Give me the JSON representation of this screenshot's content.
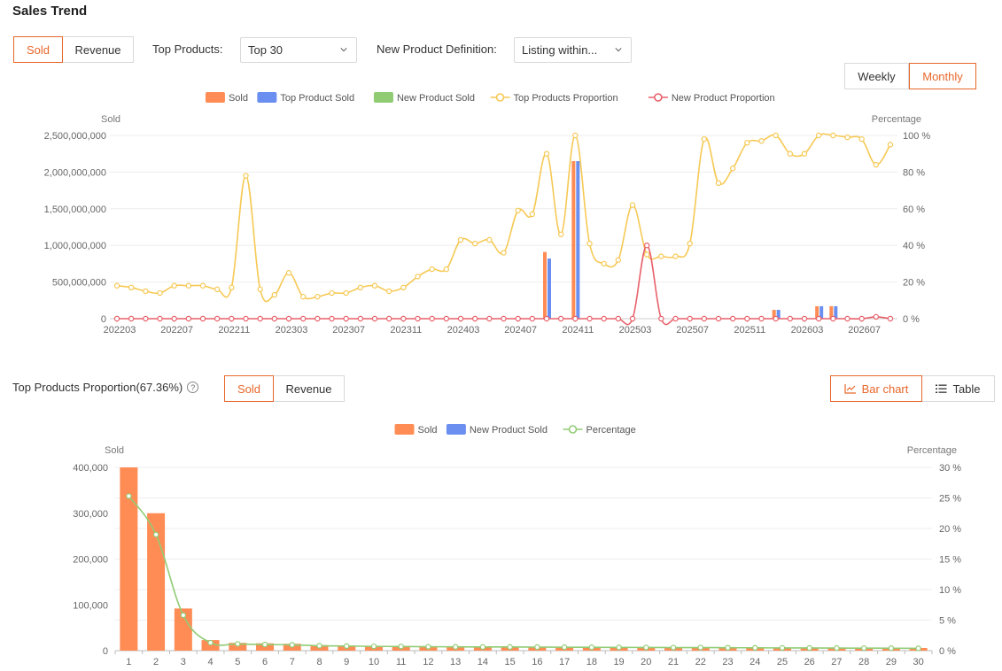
{
  "page_title": "Sales Trend",
  "top_toggle": {
    "sold": "Sold",
    "revenue": "Revenue",
    "active": "sold"
  },
  "top_products_label": "Top Products:",
  "top_products_value": "Top 30",
  "new_product_label": "New Product Definition:",
  "new_product_value": "Listing within...",
  "period_toggle": {
    "weekly": "Weekly",
    "monthly": "Monthly",
    "active": "monthly"
  },
  "colors": {
    "accent": "#e8672a",
    "sold": "#ff8c55",
    "top_sold": "#6b8ff0",
    "new_sold": "#91cc75",
    "top_prop": "#f6c955",
    "new_prop": "#e8606a",
    "pct_line": "#91cc75"
  },
  "proportion_section": {
    "title": "Top Products Proportion(67.36%)",
    "help_icon": "?",
    "toggle": {
      "sold": "Sold",
      "revenue": "Revenue",
      "active": "sold"
    },
    "view": {
      "bar": "Bar chart",
      "table": "Table",
      "active": "bar"
    }
  },
  "chart_data": [
    {
      "type": "bar",
      "legend": [
        "Sold",
        "Top Product Sold",
        "New Product Sold",
        "Top Products Proportion",
        "New Product Proportion"
      ],
      "ylabel": "Sold",
      "y2label": "Percentage",
      "ylim": [
        0,
        2500000000
      ],
      "y_ticks": [
        "0",
        "500,000,000",
        "1,000,000,000",
        "1,500,000,000",
        "2,000,000,000",
        "2,500,000,000"
      ],
      "y2lim": [
        0,
        100
      ],
      "y2_ticks": [
        "0 %",
        "20 %",
        "40 %",
        "60 %",
        "80 %",
        "100 %"
      ],
      "x_tick_labels": [
        "202203",
        "202207",
        "202211",
        "202303",
        "202307",
        "202311",
        "202403",
        "202407",
        "202411",
        "202503",
        "202507",
        "202511",
        "202603",
        "202607"
      ],
      "x_tick_every": 4,
      "n_points": 55,
      "series": [
        {
          "name": "Sold",
          "bars": [
            [
              30,
              910000000
            ],
            [
              32,
              2150000000
            ],
            [
              46,
              120000000
            ],
            [
              49,
              170000000
            ],
            [
              50,
              170000000
            ]
          ]
        },
        {
          "name": "Top Product Sold",
          "bars": [
            [
              30,
              820000000
            ],
            [
              32,
              2150000000
            ],
            [
              46,
              120000000
            ],
            [
              49,
              170000000
            ],
            [
              50,
              170000000
            ]
          ]
        },
        {
          "name": "New Product Sold",
          "bars": []
        },
        {
          "name": "Top Products Proportion",
          "values": [
            18,
            17,
            15,
            14,
            18,
            18,
            18,
            16,
            17,
            78,
            16,
            13,
            25,
            12,
            12,
            14,
            14,
            17,
            18,
            15,
            17,
            23,
            27,
            27,
            43,
            41,
            43,
            36,
            59,
            57,
            90,
            46,
            100,
            41,
            30,
            32,
            62,
            35,
            34,
            34,
            41,
            98,
            74,
            82,
            96,
            97,
            100,
            90,
            90,
            100,
            100,
            99,
            98,
            84,
            95
          ]
        },
        {
          "name": "New Product Proportion",
          "values": [
            0,
            0,
            0,
            0,
            0,
            0,
            0,
            0,
            0,
            0,
            0,
            0,
            0,
            0,
            0,
            0,
            0,
            0,
            0,
            0,
            0,
            0,
            0,
            0,
            0,
            0,
            0,
            0,
            0,
            0,
            0,
            0,
            0,
            0,
            0,
            0,
            0,
            40,
            0,
            0,
            0,
            0,
            0,
            0,
            0,
            0,
            0,
            0,
            0,
            0,
            0,
            0,
            0,
            1,
            0
          ]
        }
      ]
    },
    {
      "type": "bar",
      "legend": [
        "Sold",
        "New Product Sold",
        "Percentage"
      ],
      "ylabel": "Sold",
      "y2label": "Percentage",
      "ylim": [
        0,
        400000
      ],
      "y_ticks": [
        "0",
        "100,000",
        "200,000",
        "300,000",
        "400,000"
      ],
      "y2lim": [
        0,
        30
      ],
      "y2_ticks": [
        "0 %",
        "5 %",
        "10 %",
        "15 %",
        "20 %",
        "25 %",
        "30 %"
      ],
      "categories": [
        "1",
        "2",
        "3",
        "4",
        "5",
        "6",
        "7",
        "8",
        "9",
        "10",
        "11",
        "12",
        "13",
        "14",
        "15",
        "16",
        "17",
        "18",
        "19",
        "20",
        "21",
        "22",
        "23",
        "24",
        "25",
        "26",
        "27",
        "28",
        "29",
        "30"
      ],
      "series": [
        {
          "name": "Sold",
          "values": [
            400000,
            300000,
            92000,
            23000,
            17000,
            16000,
            15000,
            12000,
            11000,
            10500,
            10000,
            9500,
            9200,
            9000,
            8800,
            8600,
            8400,
            8200,
            8000,
            7800,
            7600,
            7400,
            7200,
            7000,
            6800,
            6600,
            6400,
            6200,
            6000,
            5800
          ]
        },
        {
          "name": "New Product Sold",
          "values": [
            0,
            0,
            0,
            0,
            0,
            0,
            0,
            0,
            0,
            0,
            0,
            0,
            0,
            0,
            0,
            0,
            0,
            0,
            0,
            0,
            0,
            0,
            0,
            0,
            0,
            0,
            0,
            0,
            0,
            0
          ]
        },
        {
          "name": "Percentage",
          "values": [
            25.3,
            19,
            5.8,
            1.3,
            1.1,
            1.0,
            0.95,
            0.8,
            0.75,
            0.7,
            0.68,
            0.65,
            0.62,
            0.6,
            0.6,
            0.58,
            0.56,
            0.55,
            0.53,
            0.52,
            0.5,
            0.5,
            0.48,
            0.46,
            0.45,
            0.44,
            0.42,
            0.41,
            0.4,
            0.38
          ]
        }
      ]
    }
  ]
}
